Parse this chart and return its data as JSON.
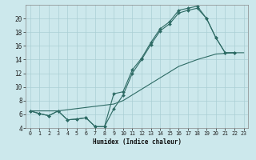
{
  "xlabel": "Humidex (Indice chaleur)",
  "background_color": "#cce8ec",
  "grid_color": "#aacfd4",
  "line_color": "#2e6b65",
  "xlim": [
    -0.5,
    23.5
  ],
  "ylim": [
    4,
    22
  ],
  "yticks": [
    4,
    6,
    8,
    10,
    12,
    14,
    16,
    18,
    20
  ],
  "xticks": [
    0,
    1,
    2,
    3,
    4,
    5,
    6,
    7,
    8,
    9,
    10,
    11,
    12,
    13,
    14,
    15,
    16,
    17,
    18,
    19,
    20,
    21,
    22,
    23
  ],
  "line1_x": [
    0,
    1,
    2,
    3,
    4,
    5,
    6,
    7,
    8,
    9,
    10,
    11,
    12,
    13,
    14,
    15,
    16,
    17,
    18,
    19,
    20,
    21,
    22
  ],
  "line1_y": [
    6.5,
    6.1,
    5.8,
    6.5,
    5.2,
    5.3,
    5.5,
    4.2,
    4.2,
    9.0,
    9.3,
    12.5,
    14.2,
    16.5,
    18.5,
    19.5,
    21.2,
    21.5,
    21.8,
    20.0,
    17.2,
    15.0,
    15.0
  ],
  "line2_x": [
    0,
    1,
    2,
    3,
    4,
    5,
    6,
    7,
    8,
    9,
    10,
    11,
    12,
    13,
    14,
    15,
    16,
    17,
    18,
    19,
    20,
    21,
    22
  ],
  "line2_y": [
    6.5,
    6.1,
    5.8,
    6.5,
    5.2,
    5.3,
    5.5,
    4.2,
    4.2,
    6.8,
    8.8,
    12.0,
    14.0,
    16.2,
    18.2,
    19.2,
    20.8,
    21.2,
    21.5,
    20.0,
    17.2,
    15.0,
    15.0
  ],
  "line3_x": [
    0,
    3,
    9,
    10,
    13,
    16,
    18,
    20,
    21,
    22,
    23
  ],
  "line3_y": [
    6.5,
    6.5,
    7.5,
    8.0,
    10.5,
    13.0,
    14.0,
    14.8,
    14.9,
    15.0,
    15.0
  ]
}
